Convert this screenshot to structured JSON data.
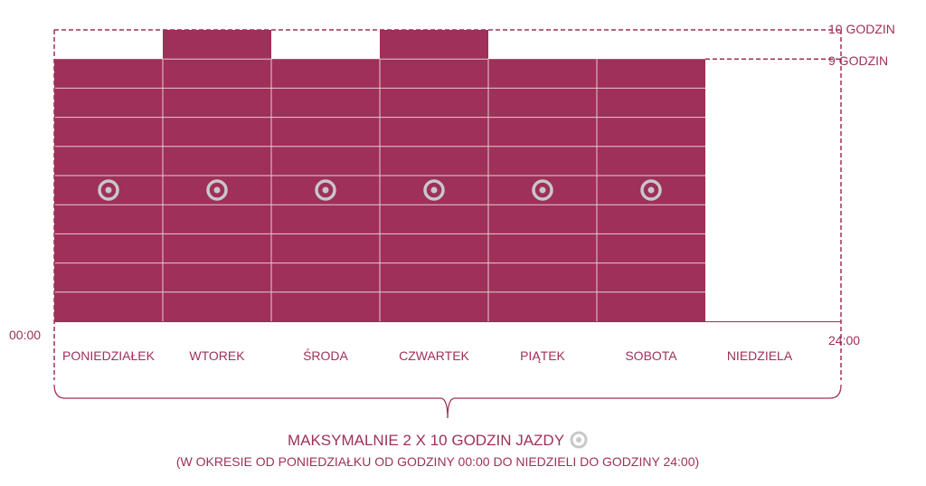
{
  "colors": {
    "accent": "#9e3059",
    "grid_line": "#e9c7d3",
    "icon": "#c8c8c8"
  },
  "limits": {
    "ten_hours": "10 GODZIN",
    "nine_hours": "9 GODZIN"
  },
  "time": {
    "start": "00:00",
    "end": "24:00"
  },
  "days": [
    {
      "label": "PONIEDZIAŁEK",
      "driving_hours": 9,
      "icon": "steering-wheel-icon"
    },
    {
      "label": "WTOREK",
      "driving_hours": 10,
      "icon": "steering-wheel-icon"
    },
    {
      "label": "ŚRODA",
      "driving_hours": 9,
      "icon": "steering-wheel-icon"
    },
    {
      "label": "CZWARTEK",
      "driving_hours": 10,
      "icon": "steering-wheel-icon"
    },
    {
      "label": "PIĄTEK",
      "driving_hours": 9,
      "icon": "steering-wheel-icon"
    },
    {
      "label": "SOBOTA",
      "driving_hours": 9,
      "icon": "steering-wheel-icon"
    },
    {
      "label": "NIEDZIELA",
      "driving_hours": 0,
      "icon": ""
    }
  ],
  "caption": {
    "main": "MAKSYMALNIE 2 X 10 GODZIN JAZDY",
    "sub": "(W OKRESIE OD PONIEDZIAŁKU OD GODZINY 00:00 DO NIEDZIELI DO GODZINY 24:00)"
  }
}
